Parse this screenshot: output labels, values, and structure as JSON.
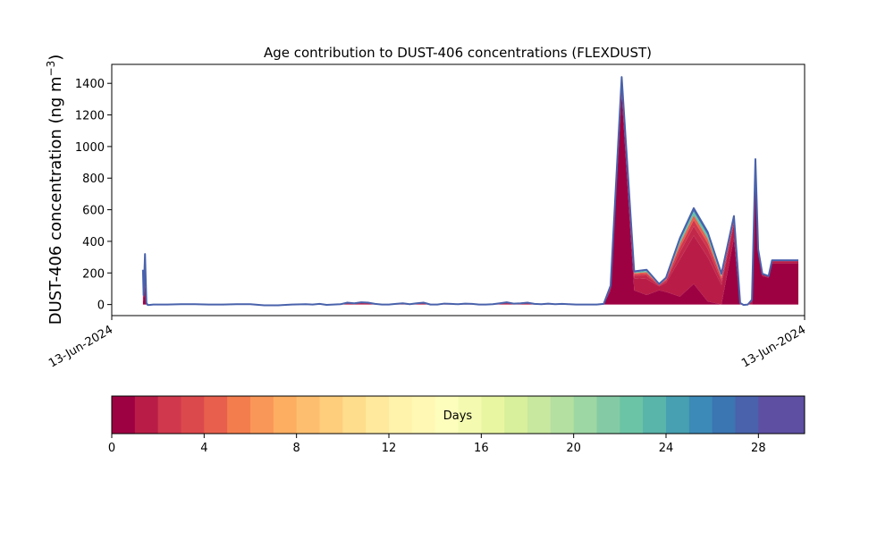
{
  "chart_data": {
    "type": "area",
    "title": "Age contribution to DUST-406 concentrations (FLEXDUST)",
    "ylabel": "DUST-406 concentration (ng m",
    "ylabel_sup": "−3",
    "ylabel_close": ")",
    "ylim": [
      -70,
      1520
    ],
    "yticks": [
      0,
      200,
      400,
      600,
      800,
      1000,
      1200,
      1400
    ],
    "xlim": [
      0,
      100
    ],
    "xticks": [
      {
        "x": 0,
        "label": "13-Jun-2024"
      },
      {
        "x": 100,
        "label": "13-Jun-2024"
      }
    ],
    "x": [
      4.5,
      4.6,
      4.8,
      5.0,
      5.2,
      5.4,
      6.0,
      8,
      10,
      12,
      14,
      16,
      18,
      20,
      22,
      24,
      26,
      28,
      29,
      30,
      31,
      32,
      33,
      34,
      35,
      36,
      37,
      38,
      39,
      40,
      41,
      42,
      43,
      44,
      45,
      46,
      47,
      48,
      49,
      50,
      51,
      52,
      53,
      54,
      55,
      56,
      57,
      58,
      59,
      60,
      61,
      62,
      63,
      64,
      65,
      66,
      67,
      68,
      69,
      70,
      71,
      72,
      73.6,
      75.4,
      77.2,
      79,
      80,
      82,
      84,
      86,
      88,
      89.8,
      90.7,
      91.2,
      91.8,
      92.4,
      92.9,
      93.3,
      93.9,
      94.8,
      95.3,
      95.6,
      96.0,
      96.5,
      97,
      98,
      99.1
    ],
    "total": [
      220,
      60,
      320,
      10,
      -3,
      -3,
      0,
      0,
      2,
      2,
      0,
      0,
      2,
      2,
      -5,
      -5,
      0,
      2,
      0,
      4,
      -2,
      0,
      2,
      12,
      8,
      14,
      12,
      4,
      0,
      0,
      4,
      8,
      2,
      8,
      12,
      0,
      0,
      6,
      4,
      2,
      6,
      4,
      0,
      0,
      2,
      8,
      14,
      6,
      8,
      12,
      4,
      2,
      6,
      2,
      4,
      2,
      0,
      0,
      0,
      0,
      4,
      120,
      1440,
      210,
      220,
      130,
      170,
      420,
      610,
      460,
      195,
      560,
      10,
      -3,
      0,
      30,
      920,
      350,
      195,
      180,
      280,
      280,
      280,
      280,
      280,
      280,
      280
    ],
    "young": [
      100,
      20,
      120,
      4,
      0,
      0,
      0,
      0,
      0,
      0,
      0,
      0,
      0,
      0,
      0,
      0,
      0,
      0,
      0,
      0,
      0,
      0,
      0,
      0,
      0,
      0,
      0,
      0,
      0,
      0,
      0,
      0,
      0,
      0,
      0,
      0,
      0,
      0,
      0,
      0,
      0,
      0,
      0,
      0,
      0,
      0,
      0,
      0,
      0,
      0,
      0,
      0,
      0,
      0,
      0,
      0,
      0,
      0,
      0,
      0,
      0,
      90,
      1330,
      90,
      60,
      90,
      80,
      50,
      130,
      20,
      0,
      420,
      0,
      0,
      0,
      0,
      800,
      350,
      180,
      170,
      260,
      260,
      260,
      260,
      260,
      260,
      260
    ],
    "age_colorbar": {
      "label": "Days",
      "min": 0,
      "max": 30,
      "ticks": [
        0,
        4,
        8,
        12,
        16,
        20,
        24,
        28
      ],
      "colors": [
        "#9e0142",
        "#b91d47",
        "#cf384d",
        "#dc494c",
        "#e8604d",
        "#f47d4d",
        "#f99758",
        "#fdae61",
        "#fdbf6f",
        "#fece7c",
        "#fedd8d",
        "#fee99d",
        "#fff3ac",
        "#fff8b4",
        "#fdfebc",
        "#f4fbb0",
        "#e9f6a1",
        "#d8ef9b",
        "#c7e89e",
        "#b4e0a2",
        "#9dd7a4",
        "#84cba5",
        "#6bc4a5",
        "#59b4aa",
        "#46a0b1",
        "#3c8ab7",
        "#3b75b2",
        "#4962ab",
        "#5e4fa2",
        "#5e4fa2"
      ]
    }
  }
}
